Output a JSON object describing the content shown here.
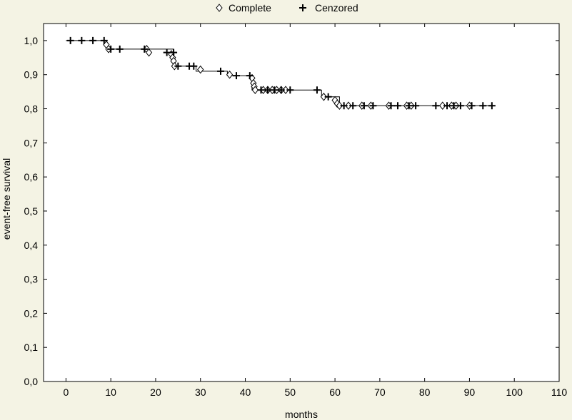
{
  "chart_data": {
    "type": "scatter",
    "title": "",
    "xlabel": "months",
    "ylabel": "event-free survival",
    "xlim": [
      -5,
      110
    ],
    "ylim": [
      0,
      1.05
    ],
    "xticks": [
      0,
      10,
      20,
      30,
      40,
      50,
      60,
      70,
      80,
      90,
      100,
      110
    ],
    "xtick_labels": [
      "0",
      "10",
      "20",
      "30",
      "40",
      "50",
      "60",
      "70",
      "80",
      "90",
      "100",
      "110"
    ],
    "yticks": [
      0,
      0.1,
      0.2,
      0.3,
      0.4,
      0.5,
      0.6,
      0.7,
      0.8,
      0.9,
      1.0
    ],
    "ytick_labels": [
      "0,0",
      "0,1",
      "0,2",
      "0,3",
      "0,4",
      "0,5",
      "0,6",
      "0,7",
      "0,8",
      "0,9",
      "1,0"
    ],
    "legend": {
      "position": "top",
      "entries": [
        {
          "label": "Complete",
          "marker": "diamond"
        },
        {
          "label": "Cenzored",
          "marker": "plus"
        }
      ]
    },
    "survival_curve": {
      "x": [
        0,
        9,
        9,
        24,
        24,
        29,
        29,
        36,
        36,
        41.5,
        41.5,
        57,
        57,
        61,
        61,
        95
      ],
      "y": [
        1.0,
        1.0,
        0.975,
        0.975,
        0.925,
        0.925,
        0.91,
        0.91,
        0.897,
        0.897,
        0.855,
        0.855,
        0.835,
        0.835,
        0.809,
        0.809
      ]
    },
    "series": [
      {
        "name": "Complete",
        "marker": "diamond",
        "points": [
          {
            "x": 9,
            "y": 0.988
          },
          {
            "x": 9.5,
            "y": 0.975
          },
          {
            "x": 18,
            "y": 0.975
          },
          {
            "x": 18.5,
            "y": 0.965
          },
          {
            "x": 23.5,
            "y": 0.96
          },
          {
            "x": 23.8,
            "y": 0.95
          },
          {
            "x": 24,
            "y": 0.94
          },
          {
            "x": 24.2,
            "y": 0.925
          },
          {
            "x": 30,
            "y": 0.915
          },
          {
            "x": 36.5,
            "y": 0.9
          },
          {
            "x": 41.5,
            "y": 0.89
          },
          {
            "x": 41.8,
            "y": 0.875
          },
          {
            "x": 42,
            "y": 0.865
          },
          {
            "x": 42.2,
            "y": 0.855
          },
          {
            "x": 44,
            "y": 0.855
          },
          {
            "x": 45,
            "y": 0.855
          },
          {
            "x": 46,
            "y": 0.855
          },
          {
            "x": 47,
            "y": 0.855
          },
          {
            "x": 48,
            "y": 0.855
          },
          {
            "x": 49,
            "y": 0.855
          },
          {
            "x": 57.5,
            "y": 0.835
          },
          {
            "x": 60,
            "y": 0.825
          },
          {
            "x": 60.5,
            "y": 0.815
          },
          {
            "x": 61,
            "y": 0.809
          },
          {
            "x": 63,
            "y": 0.809
          },
          {
            "x": 66,
            "y": 0.809
          },
          {
            "x": 68,
            "y": 0.809
          },
          {
            "x": 72,
            "y": 0.809
          },
          {
            "x": 76,
            "y": 0.809
          },
          {
            "x": 77,
            "y": 0.809
          },
          {
            "x": 84,
            "y": 0.809
          },
          {
            "x": 86,
            "y": 0.809
          },
          {
            "x": 87,
            "y": 0.809
          },
          {
            "x": 90,
            "y": 0.809
          }
        ]
      },
      {
        "name": "Cenzored",
        "marker": "plus",
        "points": [
          {
            "x": 1,
            "y": 1.0
          },
          {
            "x": 3.5,
            "y": 1.0
          },
          {
            "x": 6,
            "y": 1.0
          },
          {
            "x": 8.5,
            "y": 1.0
          },
          {
            "x": 10,
            "y": 0.975
          },
          {
            "x": 12,
            "y": 0.975
          },
          {
            "x": 17.5,
            "y": 0.975
          },
          {
            "x": 22.5,
            "y": 0.965
          },
          {
            "x": 24,
            "y": 0.965
          },
          {
            "x": 25,
            "y": 0.925
          },
          {
            "x": 27.5,
            "y": 0.925
          },
          {
            "x": 28.5,
            "y": 0.925
          },
          {
            "x": 34.5,
            "y": 0.91
          },
          {
            "x": 38,
            "y": 0.897
          },
          {
            "x": 41,
            "y": 0.897
          },
          {
            "x": 43.5,
            "y": 0.855
          },
          {
            "x": 45,
            "y": 0.855
          },
          {
            "x": 46.5,
            "y": 0.855
          },
          {
            "x": 48,
            "y": 0.855
          },
          {
            "x": 50,
            "y": 0.855
          },
          {
            "x": 56,
            "y": 0.855
          },
          {
            "x": 58.5,
            "y": 0.835
          },
          {
            "x": 62,
            "y": 0.809
          },
          {
            "x": 64,
            "y": 0.809
          },
          {
            "x": 66.5,
            "y": 0.809
          },
          {
            "x": 68.5,
            "y": 0.809
          },
          {
            "x": 72.5,
            "y": 0.809
          },
          {
            "x": 74,
            "y": 0.809
          },
          {
            "x": 76.5,
            "y": 0.809
          },
          {
            "x": 78,
            "y": 0.809
          },
          {
            "x": 82.5,
            "y": 0.809
          },
          {
            "x": 85,
            "y": 0.809
          },
          {
            "x": 86.5,
            "y": 0.809
          },
          {
            "x": 88,
            "y": 0.809
          },
          {
            "x": 90.5,
            "y": 0.809
          },
          {
            "x": 93,
            "y": 0.809
          },
          {
            "x": 95,
            "y": 0.809
          }
        ]
      }
    ],
    "colors": {
      "background": "#f4f3e4",
      "plot_background": "#ffffff",
      "marks": "#000000"
    }
  }
}
